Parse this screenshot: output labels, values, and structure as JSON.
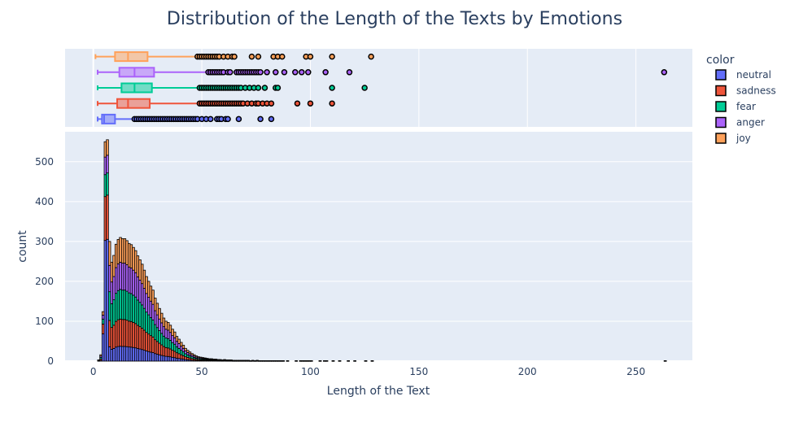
{
  "chart_data": {
    "type": "histogram-with-marginal-box",
    "title": "Distribution of the Length of the Texts by Emotions",
    "xlabel": "Length of the Text",
    "ylabel": "count",
    "xlim": [
      -13,
      276
    ],
    "ylim": [
      0,
      575
    ],
    "x_ticks": [
      0,
      50,
      100,
      150,
      200,
      250
    ],
    "y_ticks": [
      0,
      100,
      200,
      300,
      400,
      500
    ],
    "barmode": "stack",
    "grid": true,
    "legend": {
      "title": "color",
      "position": "top-right",
      "items": [
        {
          "name": "neutral",
          "color": "#636efa"
        },
        {
          "name": "sadness",
          "color": "#ef553b"
        },
        {
          "name": "fear",
          "color": "#00cc96"
        },
        {
          "name": "anger",
          "color": "#ab63fa"
        },
        {
          "name": "joy",
          "color": "#ffa15a"
        }
      ]
    },
    "histogram": {
      "bin_width": 1,
      "stack_order": [
        "neutral",
        "sadness",
        "fear",
        "anger",
        "joy"
      ],
      "totals": [
        [
          2,
          3
        ],
        [
          3,
          16
        ],
        [
          4,
          124
        ],
        [
          5,
          550
        ],
        [
          6,
          555
        ],
        [
          7,
          300
        ],
        [
          8,
          248
        ],
        [
          9,
          265
        ],
        [
          10,
          293
        ],
        [
          11,
          305
        ],
        [
          12,
          310
        ],
        [
          13,
          307
        ],
        [
          14,
          307
        ],
        [
          15,
          302
        ],
        [
          16,
          295
        ],
        [
          17,
          292
        ],
        [
          18,
          285
        ],
        [
          19,
          277
        ],
        [
          20,
          264
        ],
        [
          21,
          254
        ],
        [
          22,
          243
        ],
        [
          23,
          228
        ],
        [
          24,
          212
        ],
        [
          25,
          200
        ],
        [
          26,
          188
        ],
        [
          27,
          178
        ],
        [
          28,
          158
        ],
        [
          29,
          145
        ],
        [
          30,
          132
        ],
        [
          31,
          120
        ],
        [
          32,
          108
        ],
        [
          33,
          100
        ],
        [
          34,
          97
        ],
        [
          35,
          90
        ],
        [
          36,
          80
        ],
        [
          37,
          73
        ],
        [
          38,
          62
        ],
        [
          39,
          55
        ],
        [
          40,
          47
        ],
        [
          41,
          40
        ],
        [
          42,
          32
        ],
        [
          43,
          27
        ],
        [
          44,
          23
        ],
        [
          45,
          19
        ],
        [
          46,
          16
        ],
        [
          47,
          13
        ],
        [
          48,
          11
        ],
        [
          49,
          10
        ],
        [
          50,
          9
        ],
        [
          51,
          8
        ],
        [
          52,
          7
        ],
        [
          53,
          6
        ],
        [
          54,
          6
        ],
        [
          55,
          5
        ],
        [
          56,
          5
        ],
        [
          57,
          4
        ],
        [
          58,
          4
        ],
        [
          59,
          3
        ],
        [
          60,
          4
        ],
        [
          61,
          3
        ],
        [
          62,
          3
        ],
        [
          63,
          3
        ],
        [
          64,
          2
        ],
        [
          65,
          2
        ],
        [
          66,
          2
        ],
        [
          67,
          2
        ],
        [
          68,
          2
        ],
        [
          69,
          2
        ],
        [
          70,
          2
        ],
        [
          71,
          2
        ],
        [
          72,
          1
        ],
        [
          73,
          2
        ],
        [
          74,
          1
        ],
        [
          75,
          2
        ],
        [
          76,
          1
        ],
        [
          77,
          1
        ],
        [
          78,
          1
        ],
        [
          79,
          1
        ],
        [
          80,
          1
        ],
        [
          81,
          1
        ],
        [
          82,
          1
        ],
        [
          83,
          1
        ],
        [
          84,
          1
        ],
        [
          85,
          1
        ],
        [
          86,
          1
        ],
        [
          87,
          1
        ],
        [
          89,
          1
        ],
        [
          93,
          1
        ],
        [
          95,
          1
        ],
        [
          96,
          1
        ],
        [
          97,
          1
        ],
        [
          98,
          1
        ],
        [
          99,
          1
        ],
        [
          100,
          1
        ],
        [
          104,
          1
        ],
        [
          106,
          1
        ],
        [
          107,
          1
        ],
        [
          110,
          1
        ],
        [
          113,
          1
        ],
        [
          117,
          1
        ],
        [
          120,
          1
        ],
        [
          125,
          1
        ],
        [
          128,
          1
        ],
        [
          263,
          1
        ]
      ],
      "shares": {
        "default": [
          0.12,
          0.22,
          0.24,
          0.22,
          0.2
        ],
        "peak": [
          0.55,
          0.2,
          0.1,
          0.08,
          0.07
        ]
      }
    },
    "box_plots": [
      {
        "name": "joy",
        "color": "#ffa15a",
        "min": 1,
        "q1": 10,
        "median": 16,
        "q3": 25,
        "whisker_high": 47,
        "outliers": [
          48,
          49,
          50,
          51,
          52,
          53,
          54,
          55,
          56,
          57,
          58,
          60,
          62,
          64,
          65,
          73,
          76,
          83,
          85,
          87,
          98,
          100,
          110,
          128
        ]
      },
      {
        "name": "anger",
        "color": "#ab63fa",
        "min": 2,
        "q1": 12,
        "median": 19,
        "q3": 28,
        "whisker_high": 52,
        "outliers": [
          53,
          54,
          55,
          56,
          57,
          58,
          59,
          60,
          62,
          63,
          66,
          67,
          68,
          69,
          70,
          71,
          72,
          73,
          74,
          75,
          76,
          77,
          80,
          84,
          88,
          93,
          96,
          99,
          107,
          118,
          263
        ]
      },
      {
        "name": "fear",
        "color": "#00cc96",
        "min": 2,
        "q1": 13,
        "median": 19,
        "q3": 27,
        "whisker_high": 48,
        "outliers": [
          49,
          50,
          51,
          52,
          53,
          54,
          55,
          56,
          57,
          58,
          59,
          60,
          61,
          62,
          63,
          64,
          65,
          66,
          67,
          68,
          70,
          72,
          74,
          76,
          79,
          84,
          85,
          110,
          125
        ]
      },
      {
        "name": "sadness",
        "color": "#ef553b",
        "min": 2,
        "q1": 11,
        "median": 16,
        "q3": 26,
        "whisker_high": 48,
        "outliers": [
          49,
          50,
          51,
          52,
          53,
          54,
          55,
          56,
          57,
          58,
          59,
          60,
          61,
          62,
          63,
          64,
          65,
          66,
          67,
          68,
          69,
          71,
          73,
          75,
          76,
          78,
          80,
          82,
          94,
          100,
          110
        ]
      },
      {
        "name": "neutral",
        "color": "#636efa",
        "min": 2,
        "q1": 4,
        "median": 5,
        "q3": 10,
        "whisker_high": 18,
        "outliers": [
          19,
          20,
          21,
          22,
          23,
          24,
          25,
          26,
          27,
          28,
          29,
          30,
          31,
          32,
          33,
          34,
          35,
          36,
          37,
          38,
          39,
          40,
          41,
          42,
          43,
          44,
          45,
          46,
          47,
          48,
          50,
          52,
          54,
          57,
          58,
          59,
          61,
          62,
          67,
          77,
          82
        ]
      }
    ]
  }
}
